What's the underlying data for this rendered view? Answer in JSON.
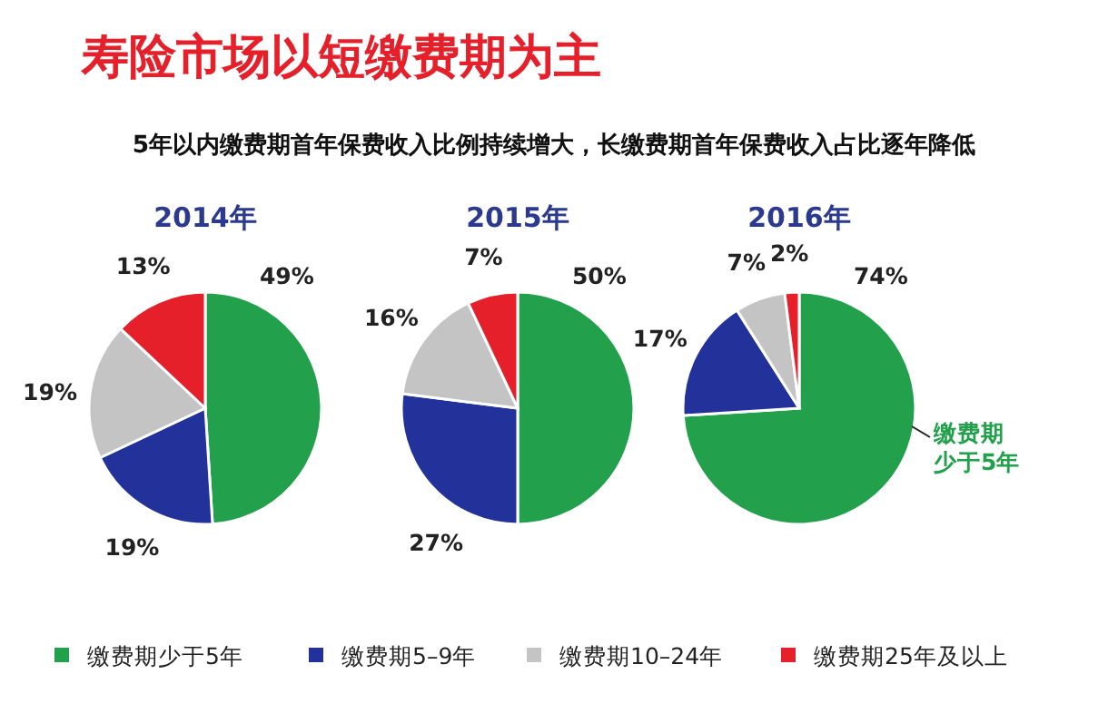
{
  "chart_data": [
    {
      "type": "other",
      "title": "寿险市场以短缴费期为主",
      "subtitle": "5年以内缴费期首年保费收入比例持续增大，长缴费期首年保费收入占比逐年降低"
    },
    {
      "type": "pie",
      "title": "2014年",
      "categories": [
        "缴费期少于5年",
        "缴费期5–9年",
        "缴费期10–24年",
        "缴费期25年及以上"
      ],
      "values": [
        49,
        19,
        19,
        13
      ],
      "value_labels": [
        "49%",
        "19%",
        "19%",
        "13%"
      ],
      "colors": [
        "#22a04b",
        "#23329a",
        "#c4c4c4",
        "#e5202a"
      ],
      "legend": "bottom"
    },
    {
      "type": "pie",
      "title": "2015年",
      "values": [
        50,
        27,
        16,
        7
      ],
      "value_labels": [
        "50%",
        "27%",
        "16%",
        "7%"
      ],
      "colors": [
        "#22a04b",
        "#23329a",
        "#c4c4c4",
        "#e5202a"
      ]
    },
    {
      "type": "pie",
      "title": "2016年",
      "values": [
        74,
        17,
        7,
        2
      ],
      "value_labels": [
        "74%",
        "17%",
        "7%",
        "2%"
      ],
      "colors": [
        "#22a04b",
        "#23329a",
        "#c4c4c4",
        "#e5202a"
      ],
      "annotations": [
        "缴费期少于5年"
      ]
    }
  ]
}
